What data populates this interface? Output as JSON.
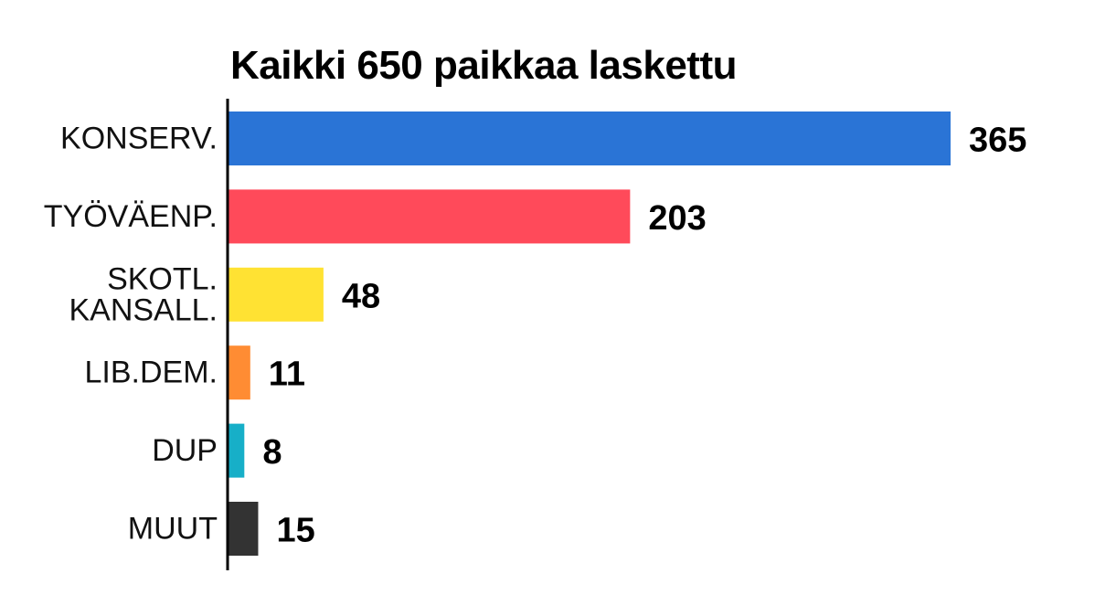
{
  "chart_data": {
    "type": "bar",
    "orientation": "horizontal",
    "title": "Kaikki 650 paikkaa laskettu",
    "xlabel": "",
    "ylabel": "",
    "categories": [
      "KONSERV.",
      "TYÖVÄENP.",
      "SKOTL.\nKANSALL.",
      "LIB.DEM.",
      "DUP",
      "MUUT"
    ],
    "values": [
      365,
      203,
      48,
      11,
      8,
      15
    ],
    "value_labels": [
      "365",
      "203",
      "48",
      "11",
      "8",
      "15"
    ],
    "colors": [
      "#2a74d6",
      "#ff4a5a",
      "#ffe233",
      "#ff8c33",
      "#17afc8",
      "#333333"
    ],
    "xlim": [
      0,
      365
    ],
    "grid": false,
    "legend": "none"
  }
}
